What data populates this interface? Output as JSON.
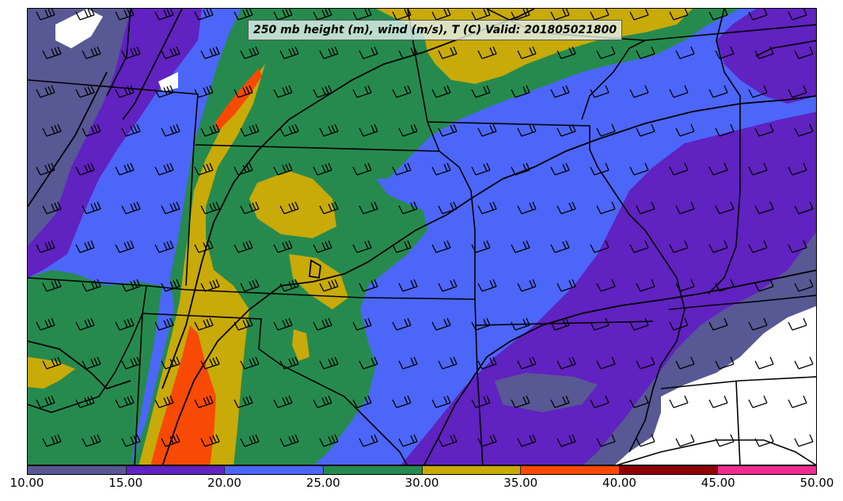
{
  "title": "250 mb height (m), wind (m/s), T (C) Valid: 201805021800",
  "colorbar": {
    "ticks": [
      "10.00",
      "15.00",
      "20.00",
      "25.00",
      "30.00",
      "35.00",
      "40.00",
      "45.00",
      "50.00"
    ],
    "colors": [
      "#585894",
      "#6022c0",
      "#4c66fa",
      "#268a4e",
      "#c8aa08",
      "#f84a04",
      "#900000",
      "#f02c90"
    ]
  },
  "map": {
    "fill_levels": [
      {
        "min": 10,
        "max": 15,
        "color": "#585894"
      },
      {
        "min": 15,
        "max": 20,
        "color": "#6022c0"
      },
      {
        "min": 20,
        "max": 25,
        "color": "#4c66fa"
      },
      {
        "min": 25,
        "max": 30,
        "color": "#268a4e"
      },
      {
        "min": 30,
        "max": 35,
        "color": "#c8aa08"
      },
      {
        "min": 35,
        "max": 40,
        "color": "#f84a04"
      }
    ],
    "below_min_color": "#ffffff",
    "boundary_color": "#000000",
    "barb_color": "#000000"
  }
}
